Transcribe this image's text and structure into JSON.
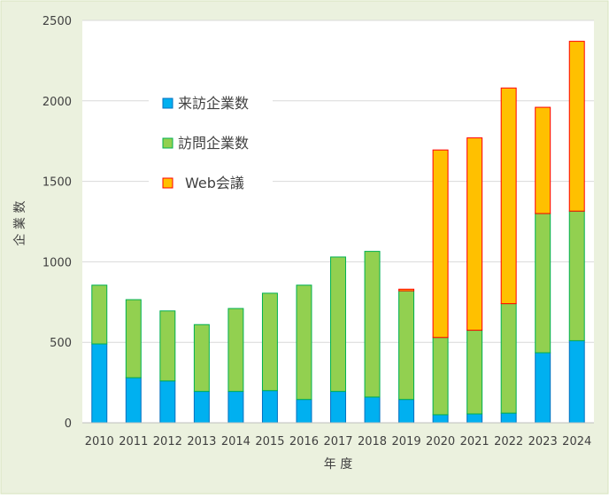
{
  "chart_data": {
    "type": "bar",
    "stacked": true,
    "categories": [
      "2010",
      "2011",
      "2012",
      "2013",
      "2014",
      "2015",
      "2016",
      "2017",
      "2018",
      "2019",
      "2020",
      "2021",
      "2022",
      "2023",
      "2024"
    ],
    "series": [
      {
        "name": "来訪企業数",
        "color": "#00B0F0",
        "stroke": "#0070C0",
        "values": [
          490,
          280,
          260,
          195,
          195,
          200,
          145,
          195,
          160,
          145,
          50,
          55,
          60,
          435,
          510
        ]
      },
      {
        "name": "訪問企業数",
        "color": "#92D050",
        "stroke": "#00B050",
        "values": [
          365,
          485,
          435,
          415,
          515,
          605,
          710,
          835,
          905,
          675,
          480,
          520,
          680,
          865,
          805
        ]
      },
      {
        "name": "Web会議",
        "color": "#FFC000",
        "stroke": "#FF0000",
        "values": [
          0,
          0,
          0,
          0,
          0,
          0,
          0,
          0,
          0,
          10,
          1165,
          1195,
          1340,
          660,
          1055
        ]
      }
    ],
    "title": "",
    "xlabel": "年 度",
    "ylabel": "企 業 数",
    "ylim": [
      0,
      2500
    ],
    "yticks": [
      "0",
      "500",
      "1000",
      "1500",
      "2000",
      "2500"
    ],
    "grid": true,
    "legend_position": "top-left"
  },
  "colors": {
    "outer_background": "#EBF1DE",
    "outer_border": "#D7E4BD",
    "plot_background": "#FFFFFF",
    "gridline": "#D9D9D9"
  }
}
